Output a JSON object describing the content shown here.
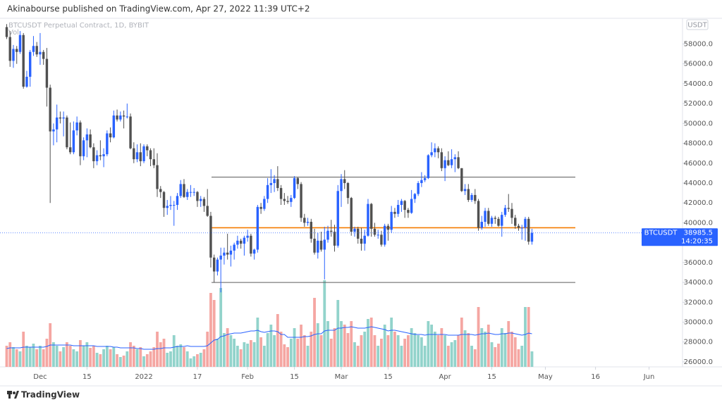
{
  "header": {
    "publisher": "Akinabourse published on TradingView.com, Apr 27, 2022 11:39 UTC+2"
  },
  "chart_data": {
    "type": "candlestick",
    "title": "BTCUSDT Perpetual Contract, 1D, BYBIT",
    "volume_label": "Vol",
    "currency": "USDT",
    "up_color": "#2962ff",
    "down_color": "#505050",
    "volume_up_color": "#92d3cb",
    "volume_down_color": "#f5a6a2",
    "volume_ma_color": "#2962ff",
    "open": [
      59700,
      58700,
      56300,
      57500,
      57200,
      58900,
      53700,
      54700,
      57200,
      57800,
      56950,
      57200,
      56500,
      53600,
      49200,
      49400,
      50600,
      50500,
      50600,
      47600,
      47100,
      49300,
      50100,
      46700,
      48300,
      48900,
      47600,
      46200,
      46800,
      46700,
      46900,
      49000,
      48600,
      50800,
      50400,
      50800,
      50700,
      50700,
      47500,
      46400,
      47100,
      46200,
      47700,
      47300,
      46400,
      45800,
      43400,
      43100,
      41500,
      41700,
      41800,
      41800,
      42700,
      43900,
      42600,
      43100,
      43100,
      43100,
      42200,
      42400,
      41700,
      40700,
      36500,
      35100,
      36300,
      36700,
      37000,
      36800,
      37200,
      37800,
      38200,
      37900,
      38500,
      38700,
      36900,
      37300,
      41600,
      41400,
      42400,
      43800,
      44000,
      44400,
      43500,
      42400,
      42200,
      42100,
      42500,
      44500,
      43900,
      40500,
      40000,
      40100,
      38400,
      37000,
      38200,
      37300,
      38300,
      39200,
      39100,
      37700,
      43200,
      44400,
      44000,
      42500,
      39100,
      39400,
      38400,
      37900,
      38700,
      41900,
      39400,
      38800,
      38800,
      37800,
      39700,
      39300,
      41100,
      40900,
      41800,
      42200,
      41300,
      41000,
      42400,
      42900,
      44000,
      44300,
      44500,
      46800,
      47100,
      47500,
      47100,
      45500,
      46300,
      45800,
      46400,
      46600,
      45500,
      43200,
      43400,
      42300,
      42800,
      42200,
      39500,
      40100,
      41200,
      39900,
      40500,
      40400,
      39700,
      40800,
      41500,
      41400,
      40500,
      39700,
      39500,
      39500,
      40400,
      38100
    ],
    "high": [
      60000,
      59300,
      57900,
      57800,
      59300,
      59100,
      55300,
      57400,
      58800,
      58200,
      59100,
      57400,
      57600,
      53900,
      50000,
      51900,
      51200,
      51200,
      50800,
      50100,
      50200,
      50700,
      50300,
      48600,
      49500,
      49400,
      48000,
      47300,
      48300,
      47500,
      49300,
      49600,
      51300,
      51400,
      51200,
      51300,
      52000,
      51000,
      48100,
      47900,
      48000,
      47900,
      47900,
      47500,
      47500,
      47000,
      43700,
      43200,
      42300,
      42700,
      42200,
      43000,
      44300,
      44400,
      43400,
      43800,
      43500,
      43200,
      42700,
      42600,
      43400,
      41100,
      36800,
      36500,
      37500,
      37500,
      38900,
      37700,
      38000,
      38700,
      38400,
      38700,
      39300,
      38900,
      37400,
      41800,
      42000,
      42700,
      44500,
      45400,
      44800,
      45700,
      43800,
      43000,
      42700,
      42800,
      44700,
      44600,
      44100,
      40900,
      40500,
      40400,
      39400,
      39000,
      39100,
      39600,
      39700,
      40300,
      39800,
      43800,
      44900,
      45300,
      44100,
      42600,
      39600,
      39600,
      39500,
      39300,
      42400,
      42000,
      40000,
      39300,
      39200,
      39900,
      39900,
      41700,
      41500,
      42300,
      42400,
      42300,
      41500,
      43300,
      43000,
      44200,
      45100,
      44800,
      46900,
      48100,
      48000,
      47700,
      47500,
      46700,
      47200,
      47400,
      46900,
      47200,
      45500,
      43900,
      43900,
      43000,
      43400,
      42400,
      40700,
      41500,
      41500,
      40700,
      40700,
      40600,
      41100,
      41800,
      42900,
      42000,
      40800,
      39900,
      39800,
      40600,
      40600,
      39400
    ],
    "low": [
      58500,
      55700,
      55600,
      56000,
      57000,
      53500,
      53600,
      53700,
      56800,
      56700,
      55900,
      55900,
      51700,
      42000,
      47800,
      48100,
      50000,
      48700,
      47400,
      46900,
      46900,
      48800,
      45800,
      46300,
      46600,
      47500,
      45500,
      45800,
      46300,
      45600,
      46700,
      48100,
      48500,
      50200,
      50200,
      49500,
      50500,
      47400,
      46000,
      46100,
      45700,
      46000,
      46700,
      45700,
      45500,
      42600,
      42500,
      40600,
      40800,
      41300,
      39700,
      41300,
      42500,
      42500,
      42300,
      42600,
      42700,
      41600,
      41600,
      41100,
      40600,
      35500,
      34000,
      34700,
      33000,
      35800,
      36300,
      35600,
      36300,
      37400,
      37400,
      36700,
      38100,
      36600,
      36300,
      37000,
      40900,
      41200,
      42000,
      43000,
      43100,
      43200,
      41800,
      41800,
      41900,
      41600,
      42400,
      43400,
      40100,
      39600,
      39700,
      38000,
      36800,
      36400,
      37100,
      34300,
      38000,
      38600,
      37100,
      37500,
      41600,
      43400,
      41900,
      38700,
      38600,
      37900,
      37200,
      37200,
      38600,
      38600,
      38600,
      38400,
      37600,
      37600,
      38200,
      39000,
      40500,
      40600,
      41100,
      40500,
      40500,
      40900,
      42000,
      42700,
      43600,
      44100,
      44400,
      46600,
      46600,
      46500,
      45200,
      44200,
      45700,
      45500,
      45100,
      45400,
      43100,
      42800,
      42100,
      42100,
      41900,
      39200,
      39300,
      39600,
      39700,
      39600,
      39900,
      39600,
      38600,
      40600,
      41100,
      39900,
      39400,
      39200,
      38300,
      38200,
      37800,
      37800
    ],
    "close": [
      58700,
      56300,
      57500,
      57200,
      58900,
      53700,
      54700,
      57200,
      57800,
      56950,
      57200,
      56500,
      53600,
      49200,
      49400,
      50600,
      50500,
      50600,
      47600,
      47100,
      49300,
      50100,
      46700,
      48300,
      48900,
      47600,
      46200,
      46800,
      46700,
      46900,
      49000,
      48600,
      50800,
      50400,
      50800,
      50700,
      50700,
      47500,
      46400,
      47100,
      46200,
      47700,
      47300,
      46400,
      45800,
      43400,
      43100,
      41500,
      41700,
      41800,
      41800,
      42700,
      43900,
      42600,
      43100,
      43100,
      43100,
      42200,
      42400,
      41700,
      40700,
      36500,
      35100,
      36300,
      36700,
      37000,
      36800,
      37200,
      37800,
      38200,
      37900,
      38500,
      38700,
      36900,
      37300,
      41600,
      41400,
      42400,
      43800,
      44000,
      44400,
      43500,
      42400,
      42200,
      42100,
      42500,
      44500,
      43900,
      40500,
      40000,
      40100,
      38400,
      37000,
      38200,
      37300,
      38300,
      39200,
      39100,
      37700,
      43200,
      44400,
      44000,
      42500,
      39100,
      39400,
      38400,
      37900,
      38700,
      41900,
      39400,
      38800,
      38800,
      37800,
      39700,
      39300,
      41100,
      40900,
      41800,
      42200,
      41300,
      41000,
      42400,
      42900,
      44000,
      44300,
      44500,
      46800,
      47100,
      47500,
      47100,
      45500,
      46300,
      45800,
      46400,
      46600,
      45500,
      43200,
      43400,
      42300,
      42800,
      42200,
      39500,
      40100,
      41200,
      39900,
      40500,
      40400,
      39700,
      40800,
      41500,
      41400,
      40500,
      39700,
      39500,
      39500,
      40400,
      38100,
      38985.5
    ],
    "volume": [
      30,
      35,
      28,
      25,
      22,
      50,
      30,
      28,
      33,
      25,
      30,
      25,
      40,
      62,
      35,
      30,
      22,
      28,
      35,
      30,
      25,
      22,
      38,
      30,
      35,
      27,
      30,
      20,
      18,
      25,
      30,
      25,
      28,
      18,
      14,
      16,
      22,
      35,
      30,
      25,
      28,
      15,
      18,
      22,
      28,
      50,
      35,
      40,
      20,
      22,
      45,
      30,
      32,
      28,
      22,
      12,
      15,
      18,
      20,
      25,
      50,
      105,
      95,
      40,
      112,
      48,
      55,
      45,
      40,
      30,
      25,
      35,
      33,
      38,
      35,
      70,
      42,
      30,
      48,
      60,
      45,
      75,
      50,
      32,
      28,
      40,
      55,
      40,
      60,
      45,
      30,
      50,
      98,
      62,
      45,
      123,
      65,
      40,
      55,
      95,
      65,
      60,
      48,
      65,
      35,
      30,
      45,
      50,
      68,
      70,
      45,
      30,
      40,
      60,
      45,
      70,
      50,
      45,
      30,
      40,
      45,
      55,
      48,
      45,
      42,
      30,
      65,
      60,
      50,
      45,
      55,
      45,
      30,
      35,
      38,
      45,
      70,
      52,
      48,
      30,
      25,
      85,
      55,
      50,
      60,
      35,
      28,
      33,
      55,
      48,
      65,
      50,
      42,
      25,
      30,
      85,
      85,
      22
    ],
    "volume_ma": [
      26,
      27,
      27,
      27,
      27,
      28,
      28,
      28,
      28,
      28,
      28,
      28,
      29,
      31,
      31,
      31,
      31,
      31,
      31,
      31,
      30,
      30,
      30,
      30,
      30,
      30,
      30,
      29,
      29,
      29,
      29,
      29,
      28,
      28,
      27,
      27,
      27,
      27,
      27,
      26,
      26,
      25,
      25,
      25,
      25,
      26,
      26,
      27,
      27,
      27,
      28,
      29,
      29,
      29,
      30,
      29,
      29,
      29,
      29,
      29,
      30,
      34,
      38,
      39,
      43,
      44,
      46,
      47,
      48,
      48,
      48,
      49,
      50,
      51,
      51,
      52,
      50,
      49,
      50,
      51,
      51,
      50,
      46,
      46,
      42,
      42,
      42,
      42,
      42,
      43,
      43,
      44,
      46,
      47,
      47,
      51,
      52,
      52,
      52,
      55,
      55,
      56,
      56,
      57,
      56,
      55,
      55,
      55,
      56,
      57,
      56,
      55,
      54,
      53,
      51,
      52,
      52,
      51,
      50,
      49,
      48,
      47,
      46,
      46,
      46,
      45,
      46,
      46,
      46,
      46,
      46,
      46,
      45,
      45,
      45,
      45,
      46,
      46,
      46,
      46,
      45,
      46,
      47,
      47,
      48,
      47,
      46,
      46,
      47,
      47,
      48,
      48,
      47,
      46,
      45,
      46,
      48,
      47
    ],
    "ylim": [
      25500,
      60300
    ],
    "yticks": [
      {
        "value": 26000,
        "label": "26000.0"
      },
      {
        "value": 28000,
        "label": "28000.0"
      },
      {
        "value": 30000,
        "label": "30000.0"
      },
      {
        "value": 32000,
        "label": "32000.0"
      },
      {
        "value": 34000,
        "label": "34000.0"
      },
      {
        "value": 36000,
        "label": "36000.0"
      },
      {
        "value": 38000,
        "label": "38000.0"
      },
      {
        "value": 40000,
        "label": "40000.0"
      },
      {
        "value": 42000,
        "label": "42000.0"
      },
      {
        "value": 44000,
        "label": "44000.0"
      },
      {
        "value": 46000,
        "label": "46000.0"
      },
      {
        "value": 48000,
        "label": "48000.0"
      },
      {
        "value": 50000,
        "label": "50000.0"
      },
      {
        "value": 52000,
        "label": "52000.0"
      },
      {
        "value": 54000,
        "label": "54000.0"
      },
      {
        "value": 56000,
        "label": "56000.0"
      },
      {
        "value": 58000,
        "label": "58000.0"
      }
    ],
    "xlim": [
      -2,
      202
    ],
    "xticks": [
      {
        "value": 10,
        "label": "Dec"
      },
      {
        "value": 24,
        "label": "15"
      },
      {
        "value": 41,
        "label": "2022"
      },
      {
        "value": 57,
        "label": "17"
      },
      {
        "value": 72,
        "label": "Feb"
      },
      {
        "value": 86,
        "label": "15"
      },
      {
        "value": 100,
        "label": "Mar"
      },
      {
        "value": 114,
        "label": "15"
      },
      {
        "value": 131,
        "label": "Apr"
      },
      {
        "value": 145,
        "label": "15"
      },
      {
        "value": 161,
        "label": "May"
      },
      {
        "value": 176,
        "label": "16"
      },
      {
        "value": 192,
        "label": "Jun"
      }
    ],
    "levels": [
      {
        "value": 44600,
        "color": "#5d5d5d"
      },
      {
        "value": 39500,
        "color": "#f57c00"
      },
      {
        "value": 34000,
        "color": "#5d5d5d"
      }
    ],
    "last_price": {
      "symbol": "BTCUSDT",
      "value": 38985.5,
      "countdown": "14:20:35",
      "color": "#2962ff"
    }
  },
  "footer": {
    "brand": "TradingView"
  }
}
